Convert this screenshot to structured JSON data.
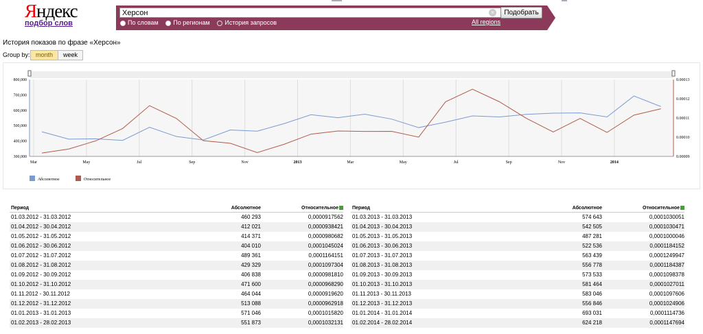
{
  "logo": {
    "main_first": "Я",
    "main_rest": "ндекс",
    "sub": "подбор слов"
  },
  "search": {
    "value": "Херсон",
    "submit": "Подобрать",
    "clear": "×",
    "radios": [
      {
        "label": "По словам",
        "checked": true
      },
      {
        "label": "По регионам",
        "checked": true
      },
      {
        "label": "История запросов",
        "checked": false
      }
    ],
    "regions_link": "All regions"
  },
  "page_title": "История показов по фразе «Херсон»",
  "group_by": {
    "label": "Group by:",
    "tabs": [
      {
        "label": "month",
        "active": true
      },
      {
        "label": "week",
        "active": false
      }
    ]
  },
  "colors": {
    "accent": "#8b3a5a",
    "abs_series": "#7a9ad0",
    "rel_series": "#b25a4a"
  },
  "chart_data": {
    "type": "line",
    "x": [
      "2012-03",
      "2012-04",
      "2012-05",
      "2012-06",
      "2012-07",
      "2012-08",
      "2012-09",
      "2012-10",
      "2012-11",
      "2012-12",
      "2013-01",
      "2013-02",
      "2013-03",
      "2013-04",
      "2013-05",
      "2013-06",
      "2013-07",
      "2013-08",
      "2013-09",
      "2013-10",
      "2013-11",
      "2013-12",
      "2014-01",
      "2014-02"
    ],
    "x_tick_labels": [
      "Mar",
      "May",
      "Jul",
      "Sep",
      "Nov",
      "2013",
      "Mar",
      "May",
      "Jul",
      "Sep",
      "Nov",
      "2014"
    ],
    "y_left_ticks": [
      "300,000",
      "400,000",
      "500,000",
      "600,000",
      "700,000",
      "800,000"
    ],
    "y_right_ticks": [
      "0.00009",
      "0.00010",
      "0.00011",
      "0.00012",
      "0.00013"
    ],
    "ylim_left": [
      300000,
      800000
    ],
    "ylim_right": [
      9e-05,
      0.00013
    ],
    "series": [
      {
        "name": "Абсолютное",
        "axis": "left",
        "values": [
          460293,
          412021,
          414371,
          404010,
          489361,
          429329,
          406838,
          471600,
          464044,
          513088,
          571046,
          551873,
          574643,
          542505,
          487281,
          522536,
          563439,
          556778,
          573533,
          581464,
          583046,
          556846,
          693031,
          624218
        ]
      },
      {
        "name": "Относительное",
        "axis": "right",
        "values": [
          9.17562e-05,
          9.38421e-05,
          9.80682e-05,
          0.0001045024,
          0.0001164151,
          0.0001097304,
          9.8181e-05,
          9.6829e-05,
          9.1962e-05,
          9.62918e-05,
          0.000101582,
          0.0001032131,
          0.0001030051,
          0.0001030471,
          0.0001000046,
          0.0001184152,
          0.0001249947,
          0.0001184387,
          0.0001098378,
          0.0001027011,
          0.0001097606,
          0.0001024906,
          0.0001114736,
          0.0001147694
        ]
      }
    ],
    "grid": true,
    "legend": "bottom-left"
  },
  "table": {
    "headers": {
      "period": "Период",
      "abs": "Абсолютное",
      "rel": "Относительное"
    },
    "left": [
      [
        "01.03.2012 - 31.03.2012",
        "460 293",
        "0,0000917562"
      ],
      [
        "01.04.2012 - 30.04.2012",
        "412 021",
        "0,0000938421"
      ],
      [
        "01.05.2012 - 31.05.2012",
        "414 371",
        "0,0000980682"
      ],
      [
        "01.06.2012 - 30.06.2012",
        "404 010",
        "0,0001045024"
      ],
      [
        "01.07.2012 - 31.07.2012",
        "489 361",
        "0,0001164151"
      ],
      [
        "01.08.2012 - 31.08.2012",
        "429 329",
        "0,0001097304"
      ],
      [
        "01.09.2012 - 30.09.2012",
        "406 838",
        "0,0000981810"
      ],
      [
        "01.10.2012 - 31.10.2012",
        "471 600",
        "0,0000968290"
      ],
      [
        "01.11.2012 - 30.11.2012",
        "464 044",
        "0,0000919620"
      ],
      [
        "01.12.2012 - 31.12.2012",
        "513 088",
        "0,0000962918"
      ],
      [
        "01.01.2013 - 31.01.2013",
        "571 046",
        "0,0001015820"
      ],
      [
        "01.02.2013 - 28.02.2013",
        "551 873",
        "0,0001032131"
      ]
    ],
    "right": [
      [
        "01.03.2013 - 31.03.2013",
        "574 643",
        "0,0001030051"
      ],
      [
        "01.04.2013 - 30.04.2013",
        "542 505",
        "0,0001030471"
      ],
      [
        "01.05.2013 - 31.05.2013",
        "487 281",
        "0,0001000046"
      ],
      [
        "01.06.2013 - 30.06.2013",
        "522 536",
        "0,0001184152"
      ],
      [
        "01.07.2013 - 31.07.2013",
        "563 439",
        "0,0001249947"
      ],
      [
        "01.08.2013 - 31.08.2013",
        "556 778",
        "0,0001184387"
      ],
      [
        "01.09.2013 - 30.09.2013",
        "573 533",
        "0,0001098378"
      ],
      [
        "01.10.2013 - 31.10.2013",
        "581 464",
        "0,0001027011"
      ],
      [
        "01.11.2013 - 30.11.2013",
        "583 046",
        "0,0001097606"
      ],
      [
        "01.12.2013 - 31.12.2013",
        "556 846",
        "0,0001024906"
      ],
      [
        "01.01.2014 - 31.01.2014",
        "693 031",
        "0,0001114736"
      ],
      [
        "01.02.2014 - 28.02.2014",
        "624 218",
        "0,0001147694"
      ]
    ]
  }
}
